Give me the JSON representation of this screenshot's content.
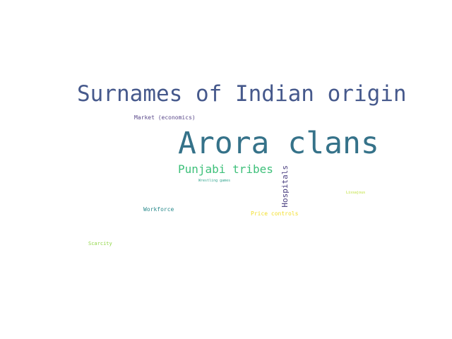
{
  "word_cloud": {
    "words": [
      {
        "text": "Surnames of Indian origin",
        "color": "#46598c"
      },
      {
        "text": "Market (economics)",
        "color": "#5b4a8b"
      },
      {
        "text": "Arora clans",
        "color": "#357289"
      },
      {
        "text": "Punjabi tribes",
        "color": "#3ec07a"
      },
      {
        "text": "Wrestling games",
        "color": "#34a58f"
      },
      {
        "text": "Hospitals",
        "color": "#483d7f"
      },
      {
        "text": "Lissajous",
        "color": "#b9de28"
      },
      {
        "text": "Workforce",
        "color": "#2a8a8c"
      },
      {
        "text": "Price controls",
        "color": "#f2de2a"
      },
      {
        "text": "Scarcity",
        "color": "#8fd644"
      }
    ]
  }
}
